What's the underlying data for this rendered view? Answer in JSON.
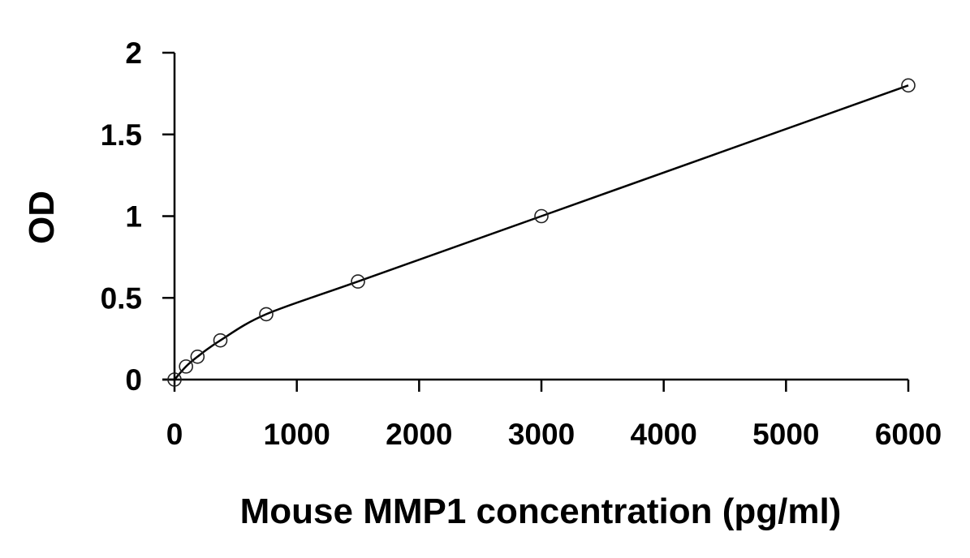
{
  "chart_data": {
    "type": "scatter",
    "title": "",
    "xlabel": "Mouse MMP1 concentration (pg/ml)",
    "ylabel": "OD",
    "xlim": [
      0,
      6000
    ],
    "ylim": [
      0,
      2
    ],
    "xticks": [
      0,
      1000,
      2000,
      3000,
      4000,
      5000,
      6000
    ],
    "yticks": [
      0,
      0.5,
      1,
      1.5,
      2
    ],
    "xtick_labels": [
      "0",
      "1000",
      "2000",
      "3000",
      "4000",
      "5000",
      "6000"
    ],
    "ytick_labels": [
      "0",
      "0.5",
      "1",
      "1.5",
      "2"
    ],
    "grid": false,
    "legend": "none",
    "series": [
      {
        "marker": "open-circle",
        "x": [
          0,
          94,
          188,
          375,
          750,
          1500,
          3000,
          6000
        ],
        "y": [
          0,
          0.08,
          0.14,
          0.24,
          0.4,
          0.6,
          1.0,
          1.8
        ]
      }
    ],
    "fit_curve": {
      "style": "smooth",
      "color": "#000000"
    }
  }
}
